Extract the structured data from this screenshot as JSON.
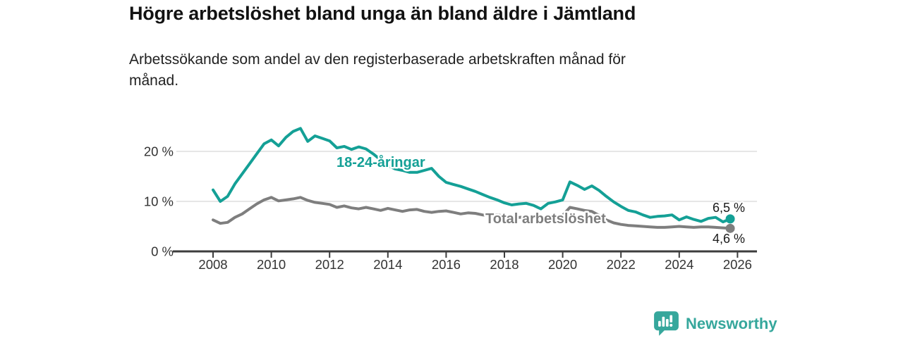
{
  "header": {
    "title": "Högre arbetslöshet bland unga än bland äldre i Jämtland",
    "subtitle": "Arbetssökande som andel av den registerbaserade arbetskraften månad för månad."
  },
  "colors": {
    "youth_line": "#14A096",
    "total_line": "#7E7E7E",
    "axis": "#3D3D3D",
    "grid": "#DEDEDE",
    "title_text": "#121212",
    "tick_text": "#333333",
    "end_label_text": "#1A1A1A",
    "brand_teal": "#36A79C"
  },
  "chart_data": {
    "type": "line",
    "title": "Högre arbetslöshet bland unga än bland äldre i Jämtland",
    "subtitle": "Arbetssökande som andel av den registerbaserade arbetskraften månad för månad.",
    "xlabel": "",
    "ylabel": "",
    "ylim": [
      0,
      26
    ],
    "grid": "horizontal",
    "legend_position": "inline-on-lines",
    "yticks": [
      {
        "value": 0,
        "label": "0 %"
      },
      {
        "value": 10,
        "label": "10 %"
      },
      {
        "value": 20,
        "label": "20 %"
      }
    ],
    "xticks": [
      "2008",
      "2010",
      "2012",
      "2014",
      "2016",
      "2018",
      "2020",
      "2022",
      "2024",
      "2026"
    ],
    "x_unit": "year (quarterly readings, monthly data)",
    "x": [
      2008.0,
      2008.25,
      2008.5,
      2008.75,
      2009.0,
      2009.25,
      2009.5,
      2009.75,
      2010.0,
      2010.25,
      2010.5,
      2010.75,
      2011.0,
      2011.25,
      2011.5,
      2011.75,
      2012.0,
      2012.25,
      2012.5,
      2012.75,
      2013.0,
      2013.25,
      2013.5,
      2013.75,
      2014.0,
      2014.25,
      2014.5,
      2014.75,
      2015.0,
      2015.25,
      2015.5,
      2015.75,
      2016.0,
      2016.25,
      2016.5,
      2016.75,
      2017.0,
      2017.25,
      2017.5,
      2017.75,
      2018.0,
      2018.25,
      2018.5,
      2018.75,
      2019.0,
      2019.25,
      2019.5,
      2019.75,
      2020.0,
      2020.25,
      2020.5,
      2020.75,
      2021.0,
      2021.25,
      2021.5,
      2021.75,
      2022.0,
      2022.25,
      2022.5,
      2022.75,
      2023.0,
      2023.25,
      2023.5,
      2023.75,
      2024.0,
      2024.25,
      2024.5,
      2024.75,
      2025.0,
      2025.25,
      2025.5,
      2025.75
    ],
    "series": [
      {
        "name": "18-24-åringar",
        "color": "#14A096",
        "end_value_label": "6,5 %",
        "values": [
          12.3,
          10.0,
          11.0,
          13.5,
          15.5,
          17.5,
          19.5,
          21.5,
          22.3,
          21.1,
          22.8,
          24.0,
          24.6,
          22.0,
          23.1,
          22.6,
          22.1,
          20.7,
          21.0,
          20.4,
          20.9,
          20.5,
          19.5,
          18.3,
          17.2,
          16.5,
          16.2,
          15.8,
          15.8,
          16.2,
          16.6,
          15.0,
          13.8,
          13.4,
          13.0,
          12.5,
          12.0,
          11.4,
          10.8,
          10.3,
          9.7,
          9.3,
          9.5,
          9.6,
          9.2,
          8.5,
          9.6,
          9.9,
          10.3,
          13.9,
          13.2,
          12.4,
          13.1,
          12.2,
          11.0,
          9.9,
          9.0,
          8.2,
          7.9,
          7.3,
          6.8,
          7.0,
          7.1,
          7.3,
          6.3,
          6.9,
          6.4,
          6.0,
          6.6,
          6.8,
          5.9,
          6.5
        ]
      },
      {
        "name": "Total arbetslöshet",
        "color": "#7E7E7E",
        "end_value_label": "4,6 %",
        "values": [
          6.3,
          5.6,
          5.8,
          6.8,
          7.5,
          8.5,
          9.5,
          10.3,
          10.8,
          10.1,
          10.3,
          10.5,
          10.8,
          10.2,
          9.8,
          9.6,
          9.4,
          8.8,
          9.1,
          8.7,
          8.5,
          8.8,
          8.5,
          8.2,
          8.6,
          8.3,
          8.0,
          8.3,
          8.4,
          8.0,
          7.8,
          8.0,
          8.1,
          7.8,
          7.5,
          7.7,
          7.6,
          7.3,
          7.2,
          7.3,
          7.1,
          6.9,
          6.8,
          6.9,
          6.8,
          6.6,
          6.7,
          6.9,
          7.2,
          8.8,
          8.5,
          8.2,
          8.0,
          7.2,
          6.3,
          5.7,
          5.4,
          5.2,
          5.1,
          5.0,
          4.9,
          4.8,
          4.8,
          4.9,
          5.0,
          4.9,
          4.8,
          4.9,
          4.9,
          4.8,
          4.7,
          4.6
        ]
      }
    ]
  },
  "footer": {
    "brand": "Newsworthy",
    "logo_icon": "bar-chart-speech-bubble"
  }
}
